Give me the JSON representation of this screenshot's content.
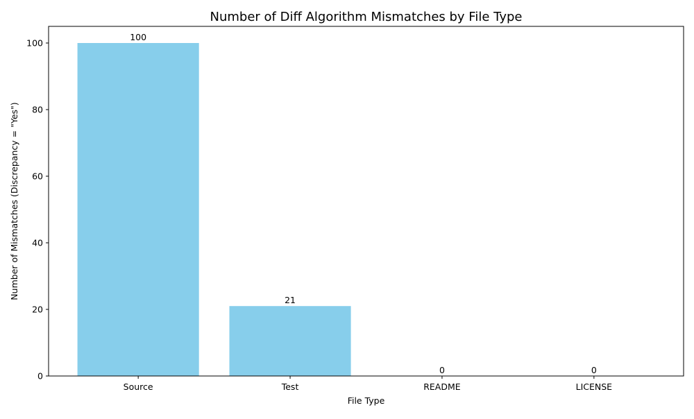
{
  "chart_data": {
    "type": "bar",
    "title": "Number of Diff Algorithm Mismatches by File Type",
    "xlabel": "File Type",
    "ylabel": "Number of Mismatches (Discrepancy = \"Yes\")",
    "categories": [
      "Source",
      "Test",
      "README",
      "LICENSE"
    ],
    "values": [
      100,
      21,
      0,
      0
    ],
    "data_labels": [
      "100",
      "21",
      "0",
      "0"
    ],
    "ylim": [
      0,
      105
    ],
    "yticks": [
      0,
      20,
      40,
      60,
      80,
      100
    ],
    "ytick_labels": [
      "0",
      "20",
      "40",
      "60",
      "80",
      "100"
    ],
    "grid": false,
    "bar_color": "#87ceeb"
  }
}
